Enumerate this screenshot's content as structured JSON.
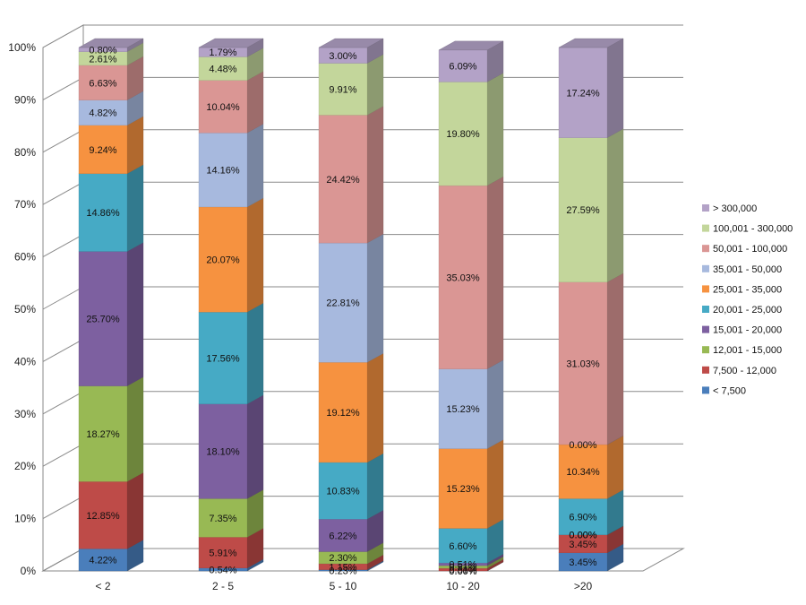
{
  "chart_data": {
    "type": "bar",
    "stacked": true,
    "percent": true,
    "three_d": true,
    "title": "",
    "xlabel": "",
    "ylabel": "",
    "ylim": [
      0,
      100
    ],
    "y_ticks": [
      "0%",
      "10%",
      "20%",
      "30%",
      "40%",
      "50%",
      "60%",
      "70%",
      "80%",
      "90%",
      "100%"
    ],
    "grid": true,
    "legend_position": "right",
    "categories": [
      "< 2",
      "2 - 5",
      "5 - 10",
      "10 - 20",
      ">20"
    ],
    "series": [
      {
        "name": "< 7,500",
        "color": "#4A7EBB",
        "values": [
          4.22,
          0.54,
          0.23,
          0.0,
          3.45
        ],
        "labels": [
          "4.22%",
          "0.54%",
          "0.23%",
          "0.00%",
          "3.45%"
        ]
      },
      {
        "name": "7,500 - 12,000",
        "color": "#BE4B48",
        "values": [
          12.85,
          5.91,
          1.15,
          0.51,
          3.45
        ],
        "labels": [
          "12.85%",
          "5.91%",
          "1.15%",
          "0.51%",
          "3.45%"
        ]
      },
      {
        "name": "12,001 - 15,000",
        "color": "#98B954",
        "values": [
          18.27,
          7.35,
          2.3,
          0.51,
          0.0
        ],
        "labels": [
          "18.27%",
          "7.35%",
          "2.30%",
          "0.51%",
          "0.00%"
        ]
      },
      {
        "name": "15,001 - 20,000",
        "color": "#7D60A0",
        "values": [
          25.7,
          18.1,
          6.22,
          0.51,
          0.0
        ],
        "labels": [
          "25.70%",
          "18.10%",
          "6.22%",
          "0.51%",
          "0.00%"
        ]
      },
      {
        "name": "20,001 - 25,000",
        "color": "#46AAC5",
        "values": [
          14.86,
          17.56,
          10.83,
          6.6,
          6.9
        ],
        "labels": [
          "14.86%",
          "17.56%",
          "10.83%",
          "6.60%",
          "6.90%"
        ]
      },
      {
        "name": "25,001 - 35,000",
        "color": "#F69240",
        "values": [
          9.24,
          20.07,
          19.12,
          15.23,
          10.34
        ],
        "labels": [
          "9.24%",
          "20.07%",
          "19.12%",
          "15.23%",
          "10.34%"
        ]
      },
      {
        "name": "35,001 - 50,000",
        "color": "#A7B9DE",
        "values": [
          4.82,
          14.16,
          22.81,
          15.23,
          0.0
        ],
        "labels": [
          "4.82%",
          "14.16%",
          "22.81%",
          "15.23%",
          "0.00%"
        ]
      },
      {
        "name": "50,001 - 100,000",
        "color": "#DA9694",
        "values": [
          6.63,
          10.04,
          24.42,
          35.03,
          31.03
        ],
        "labels": [
          "6.63%",
          "10.04%",
          "24.42%",
          "35.03%",
          "31.03%"
        ]
      },
      {
        "name": "100,001 - 300,000",
        "color": "#C3D69B",
        "values": [
          2.61,
          4.48,
          9.91,
          19.8,
          27.59
        ],
        "labels": [
          "2.61%",
          "4.48%",
          "9.91%",
          "19.80%",
          "27.59%"
        ]
      },
      {
        "name": "> 300,000",
        "color": "#B3A2C7",
        "values": [
          0.8,
          1.79,
          3.0,
          6.09,
          17.24
        ],
        "labels": [
          "0.80%",
          "1.79%",
          "3.00%",
          "6.09%",
          "17.24%"
        ]
      }
    ]
  }
}
